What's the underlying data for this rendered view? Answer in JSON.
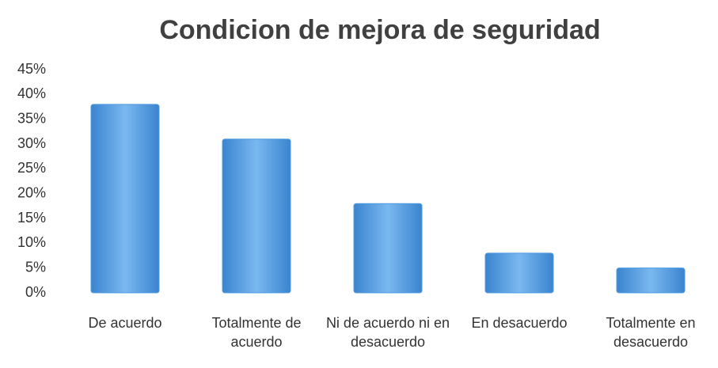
{
  "chart_data": {
    "type": "bar",
    "title": "Condicion de mejora de seguridad",
    "categories": [
      "De acuerdo",
      "Totalmente de acuerdo",
      "Ni de acuerdo ni en desacuerdo",
      "En desacuerdo",
      "Totalmente en desacuerdo"
    ],
    "values": [
      38,
      31,
      18,
      8,
      5
    ],
    "color": "#4f9be0",
    "ylim": [
      0,
      45
    ],
    "yticks": [
      {
        "value": 0,
        "label": "0%"
      },
      {
        "value": 5,
        "label": "5%"
      },
      {
        "value": 10,
        "label": "10%"
      },
      {
        "value": 15,
        "label": "15%"
      },
      {
        "value": 20,
        "label": "20%"
      },
      {
        "value": 25,
        "label": "25%"
      },
      {
        "value": 30,
        "label": "30%"
      },
      {
        "value": 35,
        "label": "35%"
      },
      {
        "value": 40,
        "label": "40%"
      },
      {
        "value": 45,
        "label": "45%"
      }
    ],
    "grid": false
  }
}
